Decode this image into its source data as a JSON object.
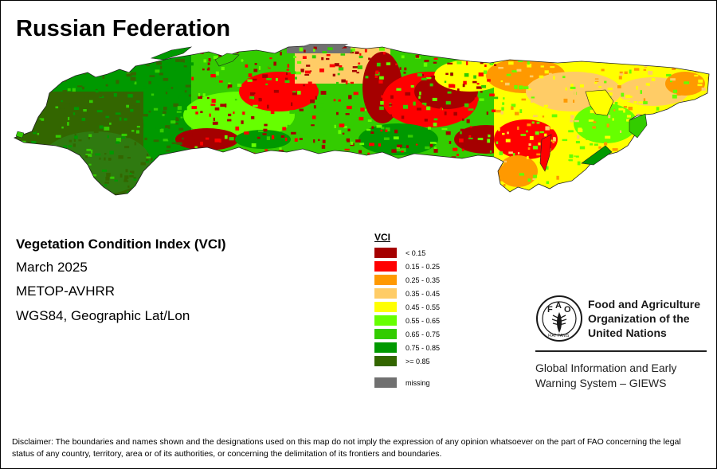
{
  "title": "Russian Federation",
  "map_info": {
    "index_name": "Vegetation Condition Index (VCI)",
    "date": "March 2025",
    "sensor": "METOP-AVHRR",
    "projection": "WGS84, Geographic Lat/Lon"
  },
  "legend": {
    "title": "VCI",
    "classes": [
      {
        "label": "< 0.15",
        "color": "#a50000"
      },
      {
        "label": "0.15 - 0.25",
        "color": "#ff0000"
      },
      {
        "label": "0.25 - 0.35",
        "color": "#ff9900"
      },
      {
        "label": "0.35 - 0.45",
        "color": "#ffcc66"
      },
      {
        "label": "0.45 - 0.55",
        "color": "#ffff00"
      },
      {
        "label": "0.55 - 0.65",
        "color": "#66ff00"
      },
      {
        "label": "0.65 - 0.75",
        "color": "#33cc00"
      },
      {
        "label": "0.75 - 0.85",
        "color": "#009900"
      },
      {
        "label": ">= 0.85",
        "color": "#336600"
      }
    ],
    "missing": {
      "label": "missing",
      "color": "#707070"
    }
  },
  "organization": {
    "emblem_text": "FAO",
    "motto": "FIAT PANIS",
    "name_lines": [
      "Food and Agriculture",
      "Organization of the",
      "United Nations"
    ],
    "system_lines": [
      "Global Information and Early",
      "Warning System – GIEWS"
    ]
  },
  "disclaimer": "Disclaimer: The boundaries and names shown and the designations used on this map do not imply the expression of any opinion whatsoever on the part of FAO concerning the legal status of any country, territory, area or of its authorities, or concerning the delimitation of its frontiers and boundaries."
}
